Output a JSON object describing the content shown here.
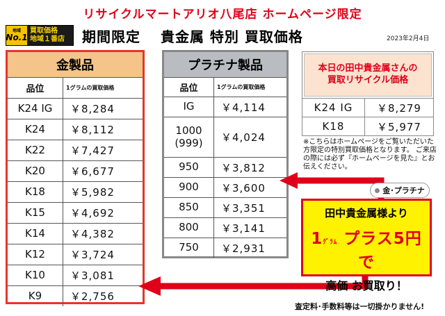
{
  "header": {
    "title": "リサイクルマートアリオ八尾店 ホームページ限定",
    "subtitle": "期間限定　 貴金属 特別 買取価格",
    "date": "2023年2月4日"
  },
  "badge": {
    "area_small": "地域",
    "no1": "No.1",
    "line1": "買取価格",
    "line2": "地域１番店"
  },
  "gold": {
    "title": "金製品",
    "col_grade": "品位",
    "col_price": "1グラムの買取価格",
    "rows": [
      {
        "grade": "K24 IG",
        "price": "￥8,284"
      },
      {
        "grade": "K24",
        "price": "￥8,112"
      },
      {
        "grade": "K22",
        "price": "￥7,427"
      },
      {
        "grade": "K20",
        "price": "￥6,677"
      },
      {
        "grade": "K18",
        "price": "￥5,982"
      },
      {
        "grade": "K15",
        "price": "￥4,692"
      },
      {
        "grade": "K14",
        "price": "￥4,382"
      },
      {
        "grade": "K12",
        "price": "￥3,724"
      },
      {
        "grade": "K10",
        "price": "￥3,081"
      },
      {
        "grade": "K9",
        "price": "￥2,756"
      }
    ]
  },
  "platinum": {
    "title": "プラチナ製品",
    "col_grade": "品位",
    "col_price": "1グラムの買取価格",
    "rows": [
      {
        "grade": "IG",
        "price": "￥4,114"
      },
      {
        "grade": "1000\n(999)",
        "price": "￥4,024"
      },
      {
        "grade": "950",
        "price": "￥3,812"
      },
      {
        "grade": "900",
        "price": "￥3,600"
      },
      {
        "grade": "850",
        "price": "￥3,351"
      },
      {
        "grade": "800",
        "price": "￥3,141"
      },
      {
        "grade": "750",
        "price": "￥2,931"
      }
    ]
  },
  "tanaka": {
    "title_line1": "本日の田中貴金属さんの",
    "title_line2": "買取リサイクル価格",
    "rows": [
      {
        "grade": "K24 IG",
        "price": "￥8,279"
      },
      {
        "grade": "K18",
        "price": "￥5,977"
      }
    ]
  },
  "note": "※こちらはホームページをご覧いただいた方限定の特別買取価格となります。\nご来店の際には必ず『ホームページを見た』とお伝えください。",
  "promo": {
    "tag": "金･プラチナ",
    "line1": "田中貴金属様より",
    "line2_big": "1",
    "line2_unit": "ｸﾞﾗﾑ",
    "line2_rest": " プラス5円で",
    "line3": "高価 お買取り！"
  },
  "footer": "査定料･手数料等は一切掛かりません!",
  "colors": {
    "accent_red": "#e0001a",
    "gold_header": "#f5c48a",
    "platinum_header": "#b9bdc2",
    "promo_yellow": "#fff200"
  }
}
